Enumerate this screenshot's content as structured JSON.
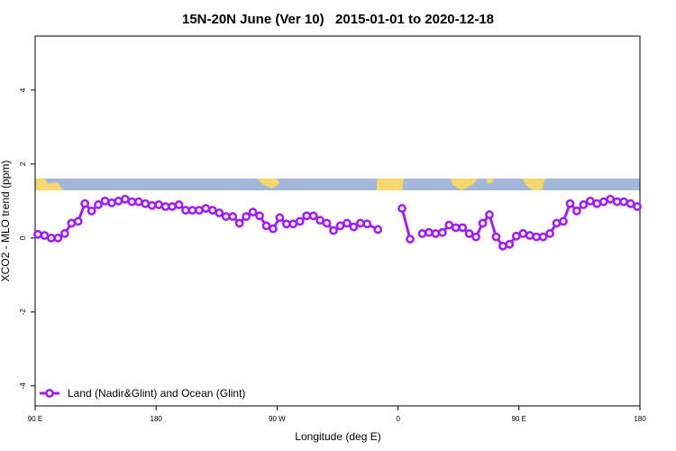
{
  "chart_data": {
    "type": "line",
    "title": "15N-20N June (Ver 10)   2015-01-01 to 2020-12-18",
    "x_label": "Longitude (deg E)",
    "y_label": "XCO2 - MLO trend (ppm)",
    "xlim": [
      90,
      540
    ],
    "ylim": [
      -4.54,
      5.46
    ],
    "xticks": [
      {
        "value": 90,
        "label": "90 E"
      },
      180,
      {
        "value": 270,
        "label": "90 W"
      },
      {
        "value": 360,
        "label": "0"
      },
      {
        "value": 450,
        "label": "90 E"
      },
      {
        "value": 540,
        "label": "180"
      }
    ],
    "yticks": [
      -4,
      -2,
      0,
      2,
      4
    ],
    "legend": "bottom-left",
    "x": [
      92,
      97,
      102,
      107,
      112,
      117,
      122,
      127,
      132,
      137,
      142,
      147,
      152,
      157,
      162,
      167,
      172,
      177,
      182,
      187,
      192,
      197,
      202,
      207,
      212,
      217,
      222,
      227,
      232,
      237,
      242,
      247,
      252,
      257,
      262,
      267,
      272,
      277,
      282,
      287,
      292,
      297,
      302,
      307,
      312,
      317,
      322,
      327,
      332,
      337,
      345,
      354,
      363,
      369,
      374,
      378,
      383,
      388,
      393,
      398,
      403,
      408,
      413,
      418,
      423,
      428,
      433,
      438,
      443,
      448,
      453,
      458,
      463,
      468,
      473,
      478,
      483,
      488,
      493,
      498,
      503,
      508,
      513,
      518,
      523,
      528,
      533,
      538
    ],
    "series": [
      {
        "name": "Land (Nadir&Glint) and Ocean (Glint)",
        "color": "#a020f0",
        "values": [
          0.1,
          0.07,
          0.0,
          0.0,
          0.12,
          0.4,
          0.45,
          0.93,
          0.73,
          0.9,
          1.0,
          0.95,
          1.0,
          1.05,
          0.98,
          0.98,
          0.93,
          0.88,
          0.9,
          0.85,
          0.85,
          0.9,
          0.75,
          0.75,
          0.75,
          0.8,
          0.75,
          0.68,
          0.58,
          0.58,
          0.4,
          0.58,
          0.7,
          0.6,
          0.33,
          0.25,
          0.55,
          0.38,
          0.38,
          0.45,
          0.6,
          0.6,
          0.48,
          0.4,
          0.2,
          0.33,
          0.4,
          0.3,
          0.4,
          0.38,
          0.23,
          null,
          0.8,
          -0.03,
          null,
          0.12,
          0.15,
          0.12,
          0.15,
          0.35,
          0.28,
          0.28,
          0.12,
          0.03,
          0.4,
          0.63,
          0.03,
          -0.22,
          -0.17,
          0.05,
          0.12,
          0.07,
          0.03,
          0.03,
          0.12,
          0.4,
          0.45,
          0.93,
          0.73,
          0.9,
          1.0,
          0.93,
          0.98,
          1.05,
          0.98,
          0.98,
          0.93,
          0.85
        ]
      }
    ]
  }
}
